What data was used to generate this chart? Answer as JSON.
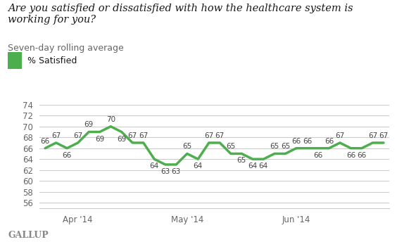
{
  "title": "Are you satisfied or dissatisfied with how the healthcare system is working for you?",
  "subtitle": "Seven-day rolling average",
  "legend_label": "% Satisfied",
  "gallup_label": "GALLUP",
  "line_color": "#4cae4c",
  "line_width": 2.5,
  "background_color": "#ffffff",
  "grid_color": "#cccccc",
  "y_values": [
    66,
    67,
    66,
    67,
    69,
    69,
    70,
    69,
    67,
    67,
    64,
    63,
    63,
    65,
    64,
    67,
    67,
    65,
    65,
    64,
    64,
    65,
    65,
    66,
    66,
    66,
    66,
    67,
    66,
    66,
    67,
    67
  ],
  "x_tick_positions": [
    3,
    13,
    23
  ],
  "x_tick_labels": [
    "Apr '14",
    "May '14",
    "Jun '14"
  ],
  "ylim": [
    55,
    75
  ],
  "yticks": [
    56,
    58,
    60,
    62,
    64,
    66,
    68,
    70,
    72,
    74
  ],
  "title_fontsize": 10.5,
  "subtitle_fontsize": 9,
  "tick_fontsize": 8.5,
  "data_label_fontsize": 7.5,
  "legend_fontsize": 9,
  "title_color": "#1a1a1a",
  "subtitle_color": "#666666",
  "tick_label_color": "#666666",
  "data_label_color": "#444444",
  "gallup_color": "#888888",
  "legend_box_color": "#4cae4c",
  "data_labels": [
    66,
    67,
    66,
    67,
    69,
    69,
    70,
    69,
    67,
    67,
    64,
    63,
    63,
    65,
    64,
    67,
    67,
    65,
    65,
    64,
    64,
    65,
    65,
    66,
    66,
    66,
    66,
    67,
    66,
    66,
    67,
    67
  ],
  "label_offsets": [
    1,
    1,
    -1,
    1,
    1,
    -1,
    1,
    -1,
    1,
    1,
    -1,
    -1,
    -1,
    1,
    -1,
    1,
    1,
    1,
    -1,
    -1,
    -1,
    1,
    1,
    1,
    1,
    -1,
    1,
    1,
    -1,
    -1,
    1,
    1
  ]
}
